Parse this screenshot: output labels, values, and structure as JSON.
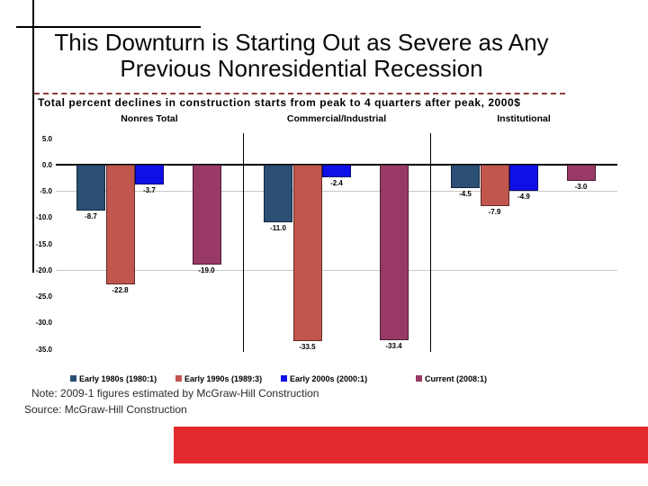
{
  "slide": {
    "title_line1": "This Downturn is Starting Out as Severe as Any",
    "title_line2": "Previous Nonresidential Recession",
    "subtitle": "Total percent declines in construction starts from peak to 4 quarters after peak, 2000$",
    "note": "Note: 2009-1 figures estimated by McGraw-Hill Construction",
    "source": "Source: McGraw-Hill Construction",
    "banner_color": "#e52a2f"
  },
  "chart_data": {
    "type": "bar",
    "title": "Total percent declines in construction starts from peak to 4 quarters after peak, 2000$",
    "categories": [
      "Nonres Total",
      "Commercial/Industrial",
      "Institutional"
    ],
    "series": [
      {
        "name": "Early 1980s (1980:1)",
        "color": "#2b4e75",
        "values": [
          -8.7,
          -11.0,
          -4.5
        ]
      },
      {
        "name": "Early 1990s (1989:3)",
        "color": "#c1564e",
        "values": [
          -22.8,
          -33.5,
          -7.9
        ]
      },
      {
        "name": "Early 2000s (2000:1)",
        "color": "#0f0fe8",
        "values": [
          -3.7,
          -2.4,
          -4.9
        ]
      },
      {
        "name": "Current (2008:1)",
        "color": "#993a66",
        "values": [
          -19.0,
          -33.4,
          -3.0
        ]
      }
    ],
    "ylim": [
      -35,
      5
    ],
    "ytick_step": 5,
    "ytick_labels": [
      "5.0",
      "0.0",
      "-5.0",
      "-10.0",
      "-15.0",
      "-20.0",
      "-25.0",
      "-30.0",
      "-35.0"
    ],
    "gridlines_at": [
      -5,
      -20
    ],
    "grid": "partial-horizontal",
    "value_labels": true,
    "legend_position": "bottom"
  }
}
